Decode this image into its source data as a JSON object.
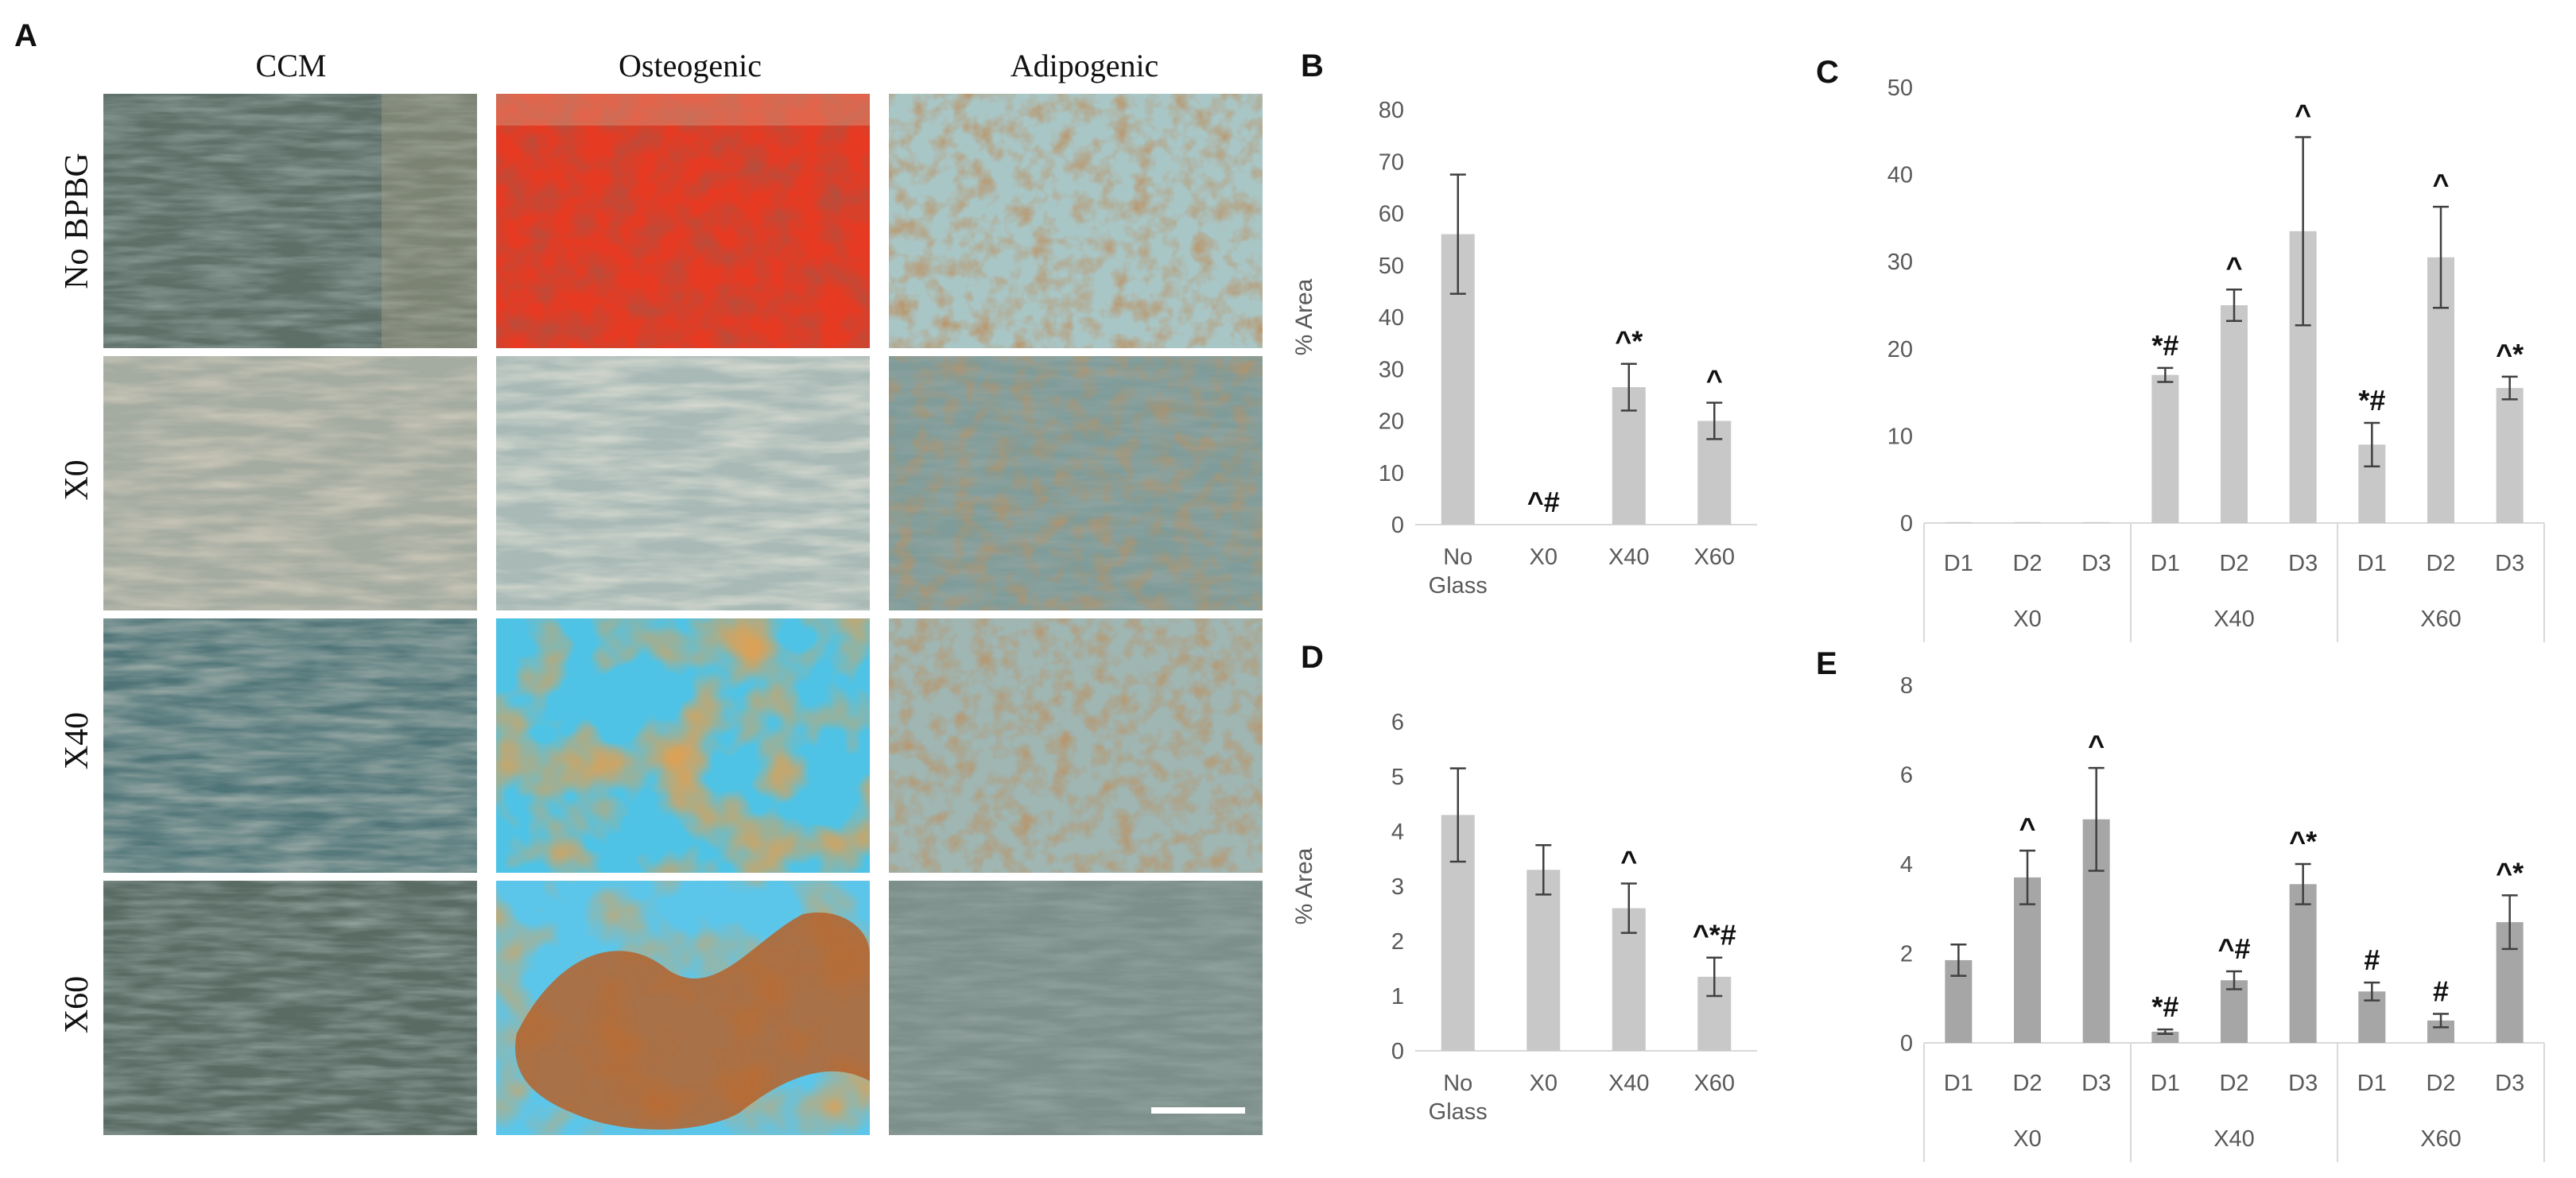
{
  "panel_a": {
    "letter": "A",
    "columns": [
      "CCM",
      "Osteogenic",
      "Adipogenic"
    ],
    "rows": [
      "No BPBG",
      "X0",
      "X40",
      "X60"
    ]
  },
  "chart_data": [
    {
      "id": "B",
      "letter": "B",
      "type": "bar",
      "ylabel": "% Area",
      "ylim": [
        0,
        80
      ],
      "ytick_step": 10,
      "categories": [
        "No Glass",
        "X0",
        "X40",
        "X60"
      ],
      "values": [
        56,
        0,
        26.5,
        20
      ],
      "errors": [
        11.5,
        0,
        4.5,
        3.5
      ],
      "annotations": [
        "",
        "^#",
        "^*",
        "^"
      ],
      "bar_color": "#c8c8c8"
    },
    {
      "id": "C",
      "letter": "C",
      "type": "bar",
      "ylabel": "",
      "ylim": [
        0,
        50
      ],
      "ytick_step": 10,
      "groups": [
        "X0",
        "X40",
        "X60"
      ],
      "categories": [
        "D1",
        "D2",
        "D3",
        "D1",
        "D2",
        "D3",
        "D1",
        "D2",
        "D3"
      ],
      "values": [
        0.1,
        0.1,
        0.1,
        17,
        25,
        33.5,
        9,
        30.5,
        15.5
      ],
      "errors": [
        0,
        0,
        0,
        0.8,
        1.8,
        10.8,
        2.5,
        5.8,
        1.3
      ],
      "annotations": [
        "",
        "",
        "",
        "*#",
        "^",
        "^",
        "*#",
        "^",
        "^*"
      ],
      "bar_color": "#c8c8c8"
    },
    {
      "id": "D",
      "letter": "D",
      "type": "bar",
      "ylabel": "% Area",
      "ylim": [
        0,
        6
      ],
      "ytick_step": 1,
      "categories": [
        "No Glass",
        "X0",
        "X40",
        "X60"
      ],
      "values": [
        4.3,
        3.3,
        2.6,
        1.35
      ],
      "errors": [
        0.85,
        0.45,
        0.45,
        0.35
      ],
      "annotations": [
        "",
        "",
        "^",
        "^*#"
      ],
      "bar_color": "#c8c8c8"
    },
    {
      "id": "E",
      "letter": "E",
      "type": "bar",
      "ylabel": "",
      "ylim": [
        0,
        8
      ],
      "ytick_step": 2,
      "groups": [
        "X0",
        "X40",
        "X60"
      ],
      "categories": [
        "D1",
        "D2",
        "D3",
        "D1",
        "D2",
        "D3",
        "D1",
        "D2",
        "D3"
      ],
      "values": [
        1.85,
        3.7,
        5.0,
        0.25,
        1.4,
        3.55,
        1.15,
        0.5,
        2.7
      ],
      "errors": [
        0.35,
        0.6,
        1.15,
        0.05,
        0.2,
        0.45,
        0.2,
        0.15,
        0.6
      ],
      "annotations": [
        "",
        "^",
        "^",
        "*#",
        "^#",
        "^*",
        "#",
        "#",
        "^*"
      ],
      "bar_color": "#a6a6a6"
    }
  ]
}
